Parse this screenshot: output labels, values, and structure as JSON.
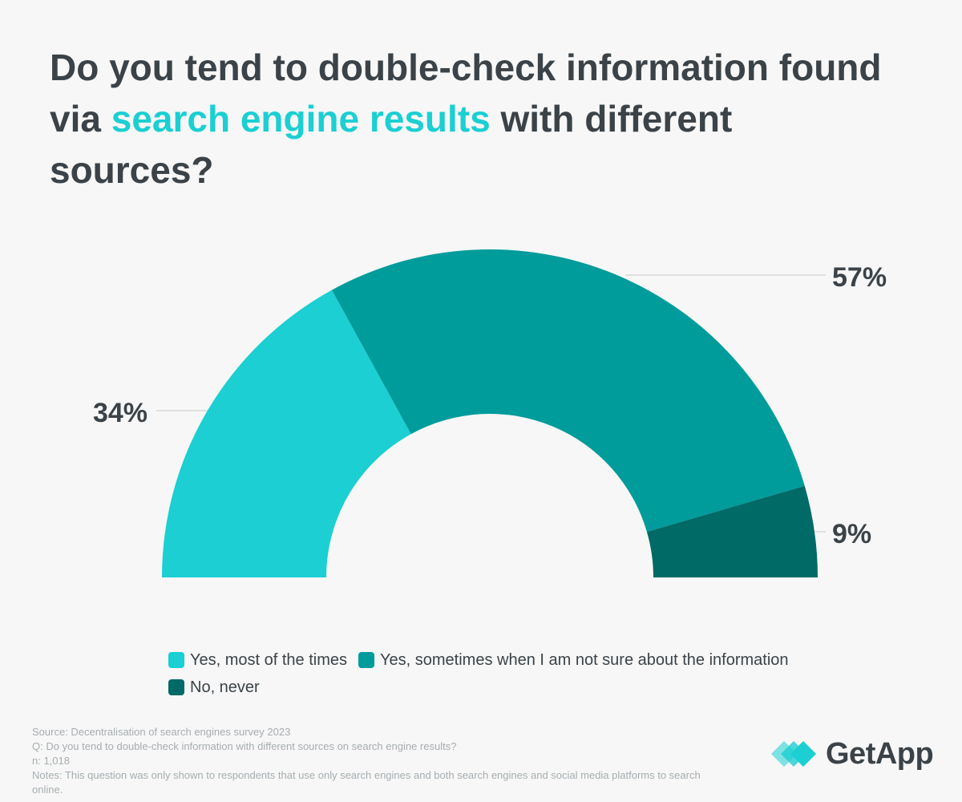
{
  "title": {
    "part1": "Do you tend to double-check information found via ",
    "highlight": "search engine results",
    "part2": " with different sources?"
  },
  "chart_data": {
    "type": "pie",
    "variant": "half-donut",
    "categories": [
      "Yes, most of the times",
      "Yes, sometimes when I am not sure about the information",
      "No, never"
    ],
    "values": [
      34,
      57,
      9
    ],
    "labels": [
      "34%",
      "57%",
      "9%"
    ],
    "colors": [
      "#1bcfd2",
      "#009b9b",
      "#006a66"
    ],
    "legend_placement": "bottom"
  },
  "footer": {
    "source": "Source: Decentralisation of search engines survey 2023",
    "question": "Q: Do you tend to double-check information with different sources on search engine results?",
    "n": "n: 1,018",
    "notes": "Notes: This question was only shown to respondents that use only search engines and both search engines and social media platforms to search online."
  },
  "logo": {
    "text": "GetApp"
  }
}
